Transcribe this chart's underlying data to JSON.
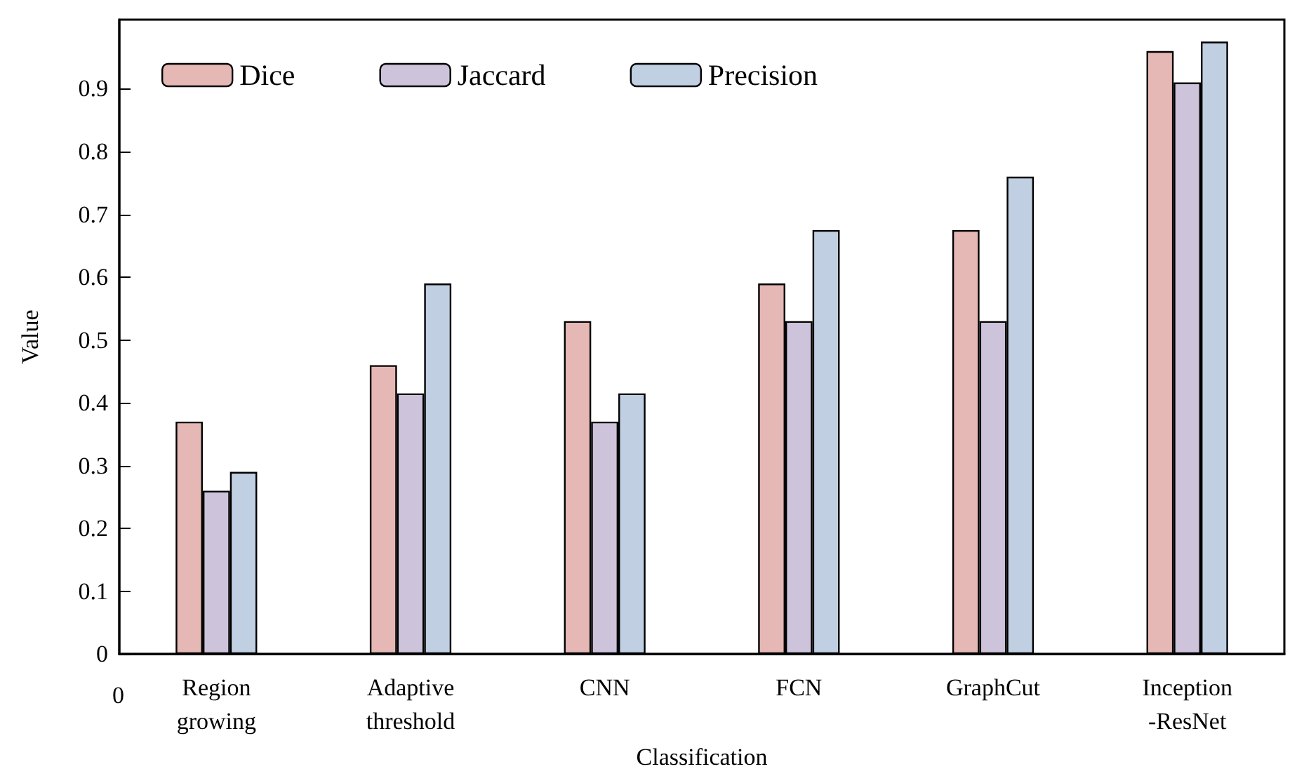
{
  "chart_data": {
    "type": "bar",
    "xlabel": "Classification",
    "ylabel": "Value",
    "categories": [
      "Region\ngrowing",
      "Adaptive\nthreshold",
      "CNN",
      "FCN",
      "GraphCut",
      "Inception\n-ResNet"
    ],
    "series": [
      {
        "name": "Dice",
        "color": "#e5b8b5",
        "values": [
          0.37,
          0.46,
          0.53,
          0.59,
          0.675,
          0.96
        ]
      },
      {
        "name": "Jaccard",
        "color": "#cdc3db",
        "values": [
          0.26,
          0.415,
          0.37,
          0.53,
          0.53,
          0.91
        ]
      },
      {
        "name": "Precision",
        "color": "#c0cfe2",
        "values": [
          0.29,
          0.59,
          0.415,
          0.675,
          0.76,
          0.975
        ]
      }
    ],
    "ylim": [
      0,
      1.01
    ],
    "yticks": [
      0,
      0.1,
      0.2,
      0.3,
      0.4,
      0.5,
      0.6,
      0.7,
      0.8,
      0.9
    ],
    "annotations": [
      "0"
    ],
    "legend": "top left",
    "grid": false
  }
}
